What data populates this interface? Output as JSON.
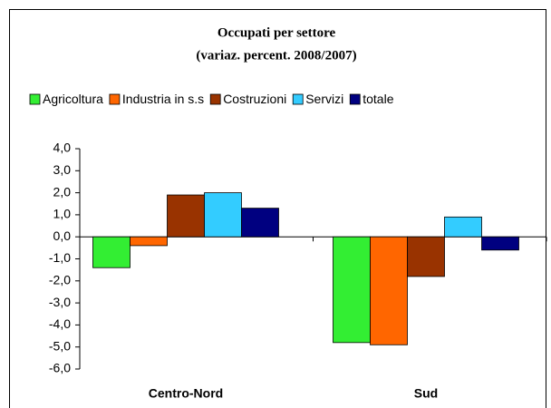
{
  "chart_data": {
    "type": "bar",
    "title": "Occupati per settore",
    "subtitle": "(variaz. percent. 2008/2007)",
    "categories": [
      "Centro-Nord",
      "Sud"
    ],
    "series": [
      {
        "name": "Agricoltura",
        "color": "#33ee33",
        "values": [
          -1.4,
          -4.8
        ]
      },
      {
        "name": "Industria in s.s",
        "color": "#ff6600",
        "values": [
          -0.4,
          -4.9
        ]
      },
      {
        "name": "Costruzioni",
        "color": "#993300",
        "values": [
          1.9,
          -1.8
        ]
      },
      {
        "name": "Servizi",
        "color": "#33ccff",
        "values": [
          2.0,
          0.9
        ]
      },
      {
        "name": "totale",
        "color": "#000080",
        "values": [
          1.3,
          -0.6
        ]
      }
    ],
    "ylim": [
      -6,
      4
    ],
    "yticks": [
      {
        "value": 4,
        "label": "4,0"
      },
      {
        "value": 3,
        "label": "3,0"
      },
      {
        "value": 2,
        "label": "2,0"
      },
      {
        "value": 1,
        "label": "1,0"
      },
      {
        "value": 0,
        "label": "0,0"
      },
      {
        "value": -1,
        "label": "-1,0"
      },
      {
        "value": -2,
        "label": "-2,0"
      },
      {
        "value": -3,
        "label": "-3,0"
      },
      {
        "value": -4,
        "label": "-4,0"
      },
      {
        "value": -5,
        "label": "-5,0"
      },
      {
        "value": -6,
        "label": "-6,0"
      }
    ],
    "grid": false,
    "legend": "top"
  }
}
